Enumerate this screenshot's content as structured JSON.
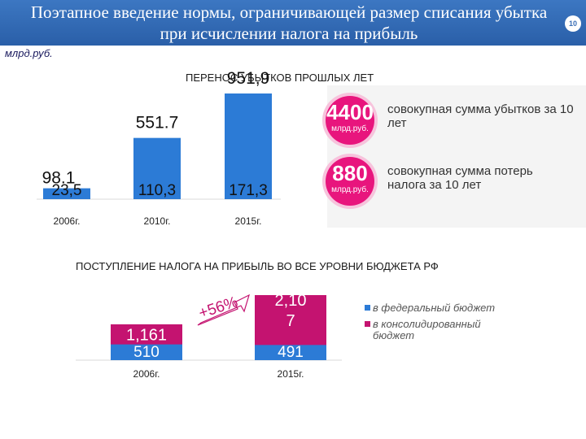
{
  "header": {
    "title": "Поэтапное введение нормы, ограничивающей размер списания убытка при исчислении налога на прибыль",
    "page_number": "10"
  },
  "unit": "млрд.руб.",
  "colors": {
    "header_blue": "#3a6eb6",
    "bar_blue": "#2c7bd6",
    "bar_magenta": "#c41370",
    "circle_pink": "#e8157d"
  },
  "stats": [
    {
      "value": "4400",
      "unit": "млрд.руб.",
      "text": "совокупная сумма убытков за 10 лет"
    },
    {
      "value": "880",
      "unit": "млрд.руб.",
      "text": "совокупная сумма потерь налога за 10 лет"
    }
  ],
  "chart_data": [
    {
      "type": "bar",
      "title": "ПЕРЕНОС УБЫТКОВ ПРОШЛЫХ ЛЕТ",
      "categories": [
        "2006г.",
        "2010г.",
        "2015г."
      ],
      "series": [
        {
          "values": [
            23.5,
            110.3,
            171.3
          ],
          "labels": [
            "23,5",
            "110,3",
            "171,3"
          ]
        },
        {
          "values": [
            98.1,
            551.7,
            951.9
          ],
          "labels": [
            "98.1",
            "551.7",
            "951,9"
          ]
        }
      ]
    },
    {
      "type": "bar",
      "title": "ПОСТУПЛЕНИЕ НАЛОГА НА ПРИБЫЛЬ ВО ВСЕ УРОВНИ БЮДЖЕТА РФ",
      "categories": [
        "2006г.",
        "2015г."
      ],
      "series": [
        {
          "name": "в федеральный бюджет",
          "values": [
            510,
            491
          ],
          "labels": [
            "510",
            "491"
          ]
        },
        {
          "name": "в консолидированный бюджет",
          "values": [
            1161,
            2107
          ],
          "labels": [
            "1,161",
            "2,10 7"
          ]
        }
      ],
      "annotation": "+56%"
    }
  ]
}
